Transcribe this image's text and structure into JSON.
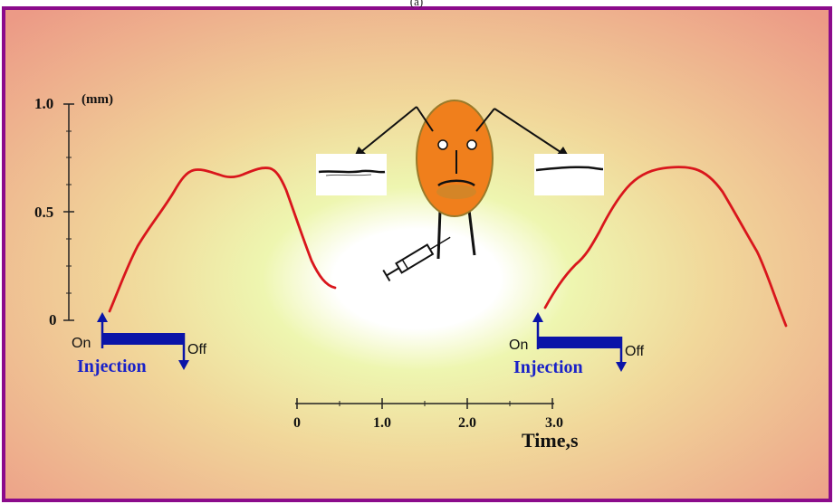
{
  "header_label": "(a)",
  "y_axis": {
    "unit": "(mm)",
    "ticks": [
      "1.0",
      "0.5",
      "0"
    ]
  },
  "time_axis": {
    "ticks": [
      "0",
      "1.0",
      "2.0",
      "3.0"
    ],
    "label": "Time,s"
  },
  "injection_left": {
    "on": "On",
    "off": "Off",
    "label": "Injection"
  },
  "injection_right": {
    "on": "On",
    "off": "Off",
    "label": "Injection"
  },
  "colors": {
    "border": "#8b0b8b",
    "trace": "#d9161c",
    "bar": "#0a14a8",
    "face": "#f07f1c",
    "injection_text": "#1a22c8"
  },
  "icons": [
    "syringe-icon",
    "face-icon"
  ]
}
